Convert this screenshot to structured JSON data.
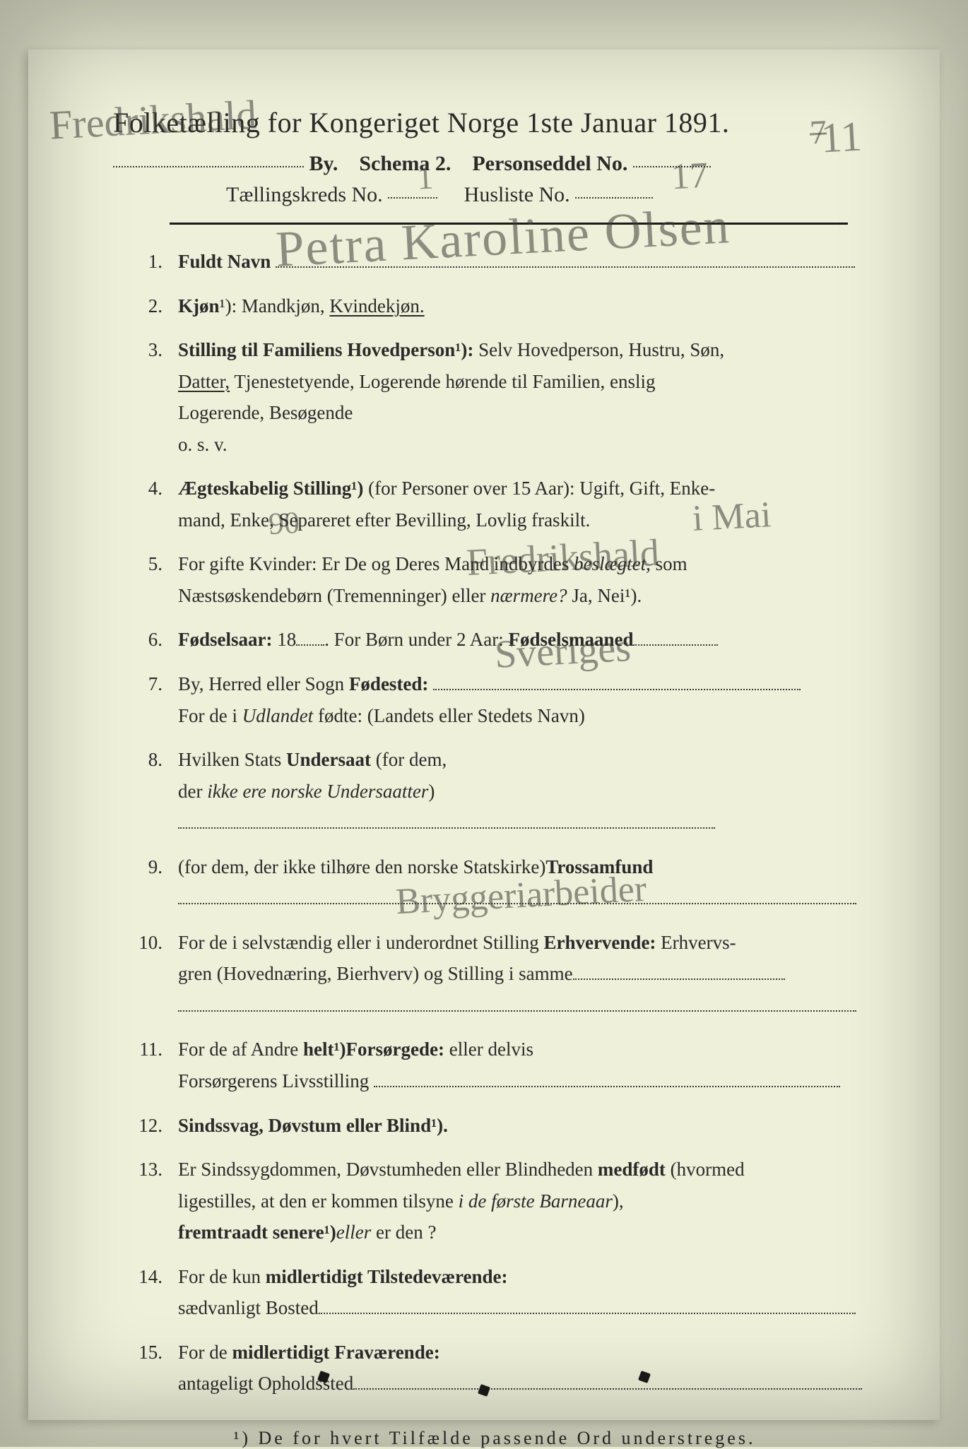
{
  "colors": {
    "page_bg": "#eef0d9",
    "outer_bg": "#e8ead2",
    "ink": "#2a2a2a",
    "rule": "#1a1a1a",
    "handwriting": "rgba(60,60,55,0.55)"
  },
  "typography": {
    "body_family": "Georgia, 'Times New Roman', serif",
    "handwriting_family": "'Brush Script MT', 'Segoe Script', cursive",
    "title_size_pt": 30,
    "body_size_pt": 20,
    "footnote_size_pt": 19
  },
  "header": {
    "title": "Folketælling for Kongeriget Norge 1ste Januar 1891.",
    "line2_prefix_hand": "Fredrikshald",
    "line2_by": "By.",
    "line2_schema": "Schema 2.",
    "line2_pers_label": "Personseddel No.",
    "line2_pers_value_hand": "11",
    "line2_pers_value_struck": "7",
    "line3_kreds_label": "Tællingskreds No.",
    "line3_kreds_value_hand": "1",
    "line3_husliste_label": "Husliste No.",
    "line3_husliste_value_hand": "17"
  },
  "questions": [
    {
      "lead": "Fuldt Navn",
      "hand_after": "Petra Karoline Olsen"
    },
    {
      "raw": "Kjøn¹): Mandkjøn, ",
      "underlined": "Kvindekjøn."
    },
    {
      "lines": [
        {
          "t": "Stilling til Familiens Hovedperson¹): ",
          "b": true,
          "tail": "Selv Hovedperson, Hustru, Søn,"
        },
        {
          "pre_under": "Datter,",
          "tail": " Tjenestetyende, Logerende hørende til Familien, enslig"
        },
        {
          "tail": "Logerende, Besøgende"
        },
        {
          "tail": "o. s. v."
        }
      ]
    },
    {
      "lines": [
        {
          "t": "Ægteskabelig Stilling¹) ",
          "b": true,
          "tail": "(for Personer over 15 Aar): Ugift, Gift, Enke-"
        },
        {
          "tail": "mand, Enke, Separeret efter Bevilling, Lovlig fraskilt."
        }
      ]
    },
    {
      "lines": [
        {
          "tail": "For gifte Kvinder: Er De og Deres Mand indbyrdes ",
          "i_tail": "beslægtet,",
          "post": " som"
        },
        {
          "tail": "Næstsøskendebørn (Tremenninger) eller ",
          "i_tail": "nærmere?",
          "post": "  Ja, Nei¹)."
        }
      ]
    },
    {
      "inline": [
        {
          "b": "Fødselsaar: ",
          "plain": "18",
          "hand": "90",
          "dots_w": 40
        },
        {
          "plain": ".   For Børn under 2 Aar: ",
          "b2": "Fødselsmaaned",
          "hand2": " i Mai",
          "dots_w2": 120
        }
      ]
    },
    {
      "lines": [
        {
          "b": "Fødested: ",
          "plain": "By, Herred eller Sogn ",
          "hand": "Fredrikshald",
          "dots_w": 520
        },
        {
          "plain": "For de i ",
          "i": "Udlandet",
          "post": " fødte: (Landets eller Stedets Navn)"
        }
      ]
    },
    {
      "lines": [
        {
          "plain": "Hvilken Stats ",
          "b": "Undersaat",
          "post": " (for dem,",
          "hand_right": "Sveriges"
        },
        {
          "plain": "der ",
          "i": "ikke ere norske Undersaatter",
          "post": ")",
          "dots_w": 760
        }
      ]
    },
    {
      "lines": [
        {
          "b": "Trossamfund ",
          "plain": "(for dem, der ikke tilhøre den norske Statskirke)"
        },
        {
          "dots_full": true
        }
      ]
    },
    {
      "lines": [
        {
          "plain": "For de i selvstændig eller i underordnet Stilling ",
          "b": "Erhvervende: ",
          "post": "Erhvervs-"
        },
        {
          "plain": "gren (Hovednæring, Bierhverv) og Stilling i samme",
          "dots_w": 300
        },
        {
          "dots_full": true
        }
      ]
    },
    {
      "lines": [
        {
          "plain": "For de af Andre ",
          "b": "helt¹)",
          "post": " eller delvis ",
          "b2": "Forsørgede:"
        },
        {
          "plain": "Forsørgerens Livsstilling ",
          "hand": "Bryggeriarbeider",
          "dots_w": 660
        }
      ]
    },
    {
      "single": "Sindssvag, Døvstum eller Blind¹).",
      "bold_lead": true
    },
    {
      "lines": [
        {
          "plain": "Er Sindssygdommen, Døvstumheden eller Blindheden ",
          "b": "medfødt",
          "post": " (hvormed"
        },
        {
          "plain": "ligestilles, at den er kommen tilsyne ",
          "i": "i de første Barneaar",
          "post": "),"
        },
        {
          "i": "eller",
          "plain2": " er den ",
          "b": "fremtraadt senere¹)",
          "post": "?"
        }
      ]
    },
    {
      "lines": [
        {
          "plain": "For de kun ",
          "b": "midlertidigt Tilstedeværende:"
        },
        {
          "plain": "sædvanligt Bosted",
          "dots_w": 760
        }
      ]
    },
    {
      "lines": [
        {
          "plain": "For de ",
          "b": "midlertidigt Fraværende:"
        },
        {
          "plain": "antageligt Opholdssted",
          "dots_w": 720
        }
      ]
    }
  ],
  "footnote": "¹) De for hvert Tilfælde passende Ord understreges."
}
